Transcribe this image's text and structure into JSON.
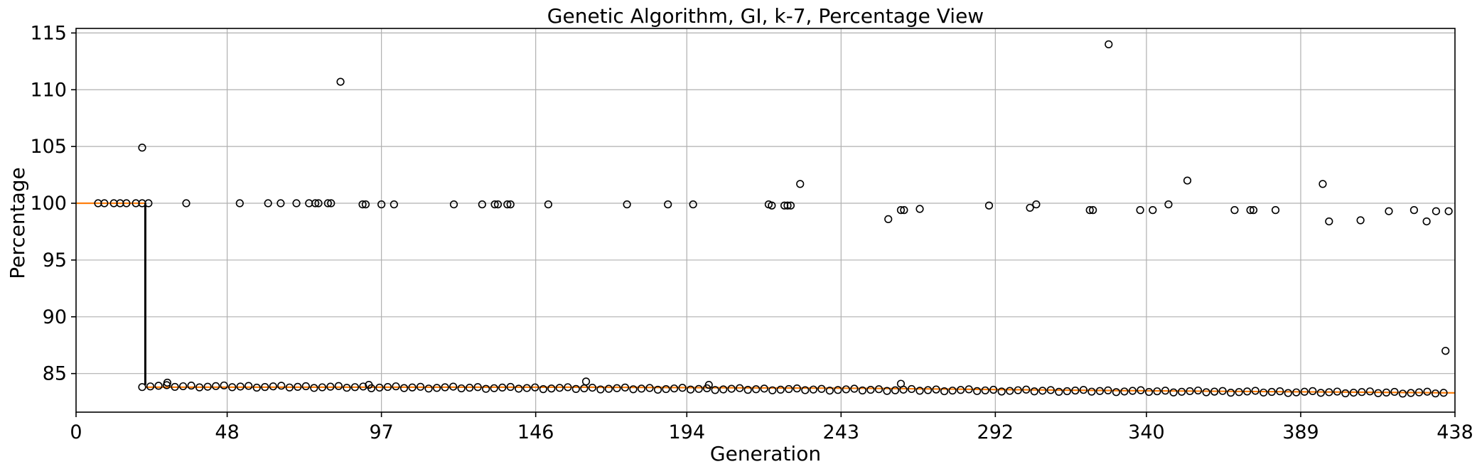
{
  "chart_data": {
    "type": "box",
    "title": "Genetic Algorithm, GI, k-7, Percentage View",
    "xlabel": "Generation",
    "ylabel": "Percentage",
    "xlim": [
      0,
      438
    ],
    "ylim": [
      81.6,
      115.4
    ],
    "x_ticks": [
      0,
      48,
      97,
      146,
      194,
      243,
      292,
      340,
      389,
      438
    ],
    "y_ticks": [
      85,
      90,
      95,
      100,
      105,
      110,
      115
    ],
    "grid": true,
    "median_series": {
      "segments": [
        {
          "x_from": 0,
          "x_to": 22,
          "y_from": 100.0,
          "y_to": 100.0
        },
        {
          "x_from": 22,
          "x_to": 160,
          "y_from": 83.8,
          "y_to": 83.8
        },
        {
          "x_from": 160,
          "x_to": 250,
          "y_from": 83.8,
          "y_to": 83.7
        },
        {
          "x_from": 250,
          "x_to": 330,
          "y_from": 83.7,
          "y_to": 83.5
        },
        {
          "x_from": 330,
          "x_to": 438,
          "y_from": 83.5,
          "y_to": 83.3
        }
      ]
    },
    "whisker": {
      "x": 22,
      "low": 84.0,
      "high": 100.0
    },
    "outliers_upper": [
      {
        "x": 7,
        "y": 100.0
      },
      {
        "x": 9,
        "y": 100.0
      },
      {
        "x": 12,
        "y": 100.0
      },
      {
        "x": 14,
        "y": 100.0
      },
      {
        "x": 16,
        "y": 100.0
      },
      {
        "x": 19,
        "y": 100.0
      },
      {
        "x": 21,
        "y": 100.0
      },
      {
        "x": 23,
        "y": 100.0
      },
      {
        "x": 21,
        "y": 104.9
      },
      {
        "x": 35,
        "y": 100.0
      },
      {
        "x": 52,
        "y": 100.0
      },
      {
        "x": 61,
        "y": 100.0
      },
      {
        "x": 65,
        "y": 100.0
      },
      {
        "x": 70,
        "y": 100.0
      },
      {
        "x": 74,
        "y": 100.0
      },
      {
        "x": 76,
        "y": 100.0
      },
      {
        "x": 77,
        "y": 100.0
      },
      {
        "x": 80,
        "y": 100.0
      },
      {
        "x": 81,
        "y": 100.0
      },
      {
        "x": 84,
        "y": 110.7
      },
      {
        "x": 91,
        "y": 99.9
      },
      {
        "x": 92,
        "y": 99.9
      },
      {
        "x": 97,
        "y": 99.9
      },
      {
        "x": 101,
        "y": 99.9
      },
      {
        "x": 120,
        "y": 99.9
      },
      {
        "x": 129,
        "y": 99.9
      },
      {
        "x": 133,
        "y": 99.9
      },
      {
        "x": 134,
        "y": 99.9
      },
      {
        "x": 137,
        "y": 99.9
      },
      {
        "x": 138,
        "y": 99.9
      },
      {
        "x": 150,
        "y": 99.9
      },
      {
        "x": 175,
        "y": 99.9
      },
      {
        "x": 188,
        "y": 99.9
      },
      {
        "x": 196,
        "y": 99.9
      },
      {
        "x": 220,
        "y": 99.9
      },
      {
        "x": 221,
        "y": 99.8
      },
      {
        "x": 225,
        "y": 99.8
      },
      {
        "x": 226,
        "y": 99.8
      },
      {
        "x": 227,
        "y": 99.8
      },
      {
        "x": 230,
        "y": 101.7
      },
      {
        "x": 258,
        "y": 98.6
      },
      {
        "x": 262,
        "y": 99.4
      },
      {
        "x": 263,
        "y": 99.4
      },
      {
        "x": 268,
        "y": 99.5
      },
      {
        "x": 290,
        "y": 99.8
      },
      {
        "x": 303,
        "y": 99.6
      },
      {
        "x": 305,
        "y": 99.9
      },
      {
        "x": 322,
        "y": 99.4
      },
      {
        "x": 323,
        "y": 99.4
      },
      {
        "x": 328,
        "y": 114.0
      },
      {
        "x": 338,
        "y": 99.4
      },
      {
        "x": 342,
        "y": 99.4
      },
      {
        "x": 347,
        "y": 99.9
      },
      {
        "x": 353,
        "y": 102.0
      },
      {
        "x": 368,
        "y": 99.4
      },
      {
        "x": 373,
        "y": 99.4
      },
      {
        "x": 374,
        "y": 99.4
      },
      {
        "x": 381,
        "y": 99.4
      },
      {
        "x": 396,
        "y": 101.7
      },
      {
        "x": 398,
        "y": 98.4
      },
      {
        "x": 408,
        "y": 98.5
      },
      {
        "x": 417,
        "y": 99.3
      },
      {
        "x": 425,
        "y": 99.4
      },
      {
        "x": 429,
        "y": 98.4
      },
      {
        "x": 432,
        "y": 99.3
      },
      {
        "x": 436,
        "y": 99.3
      },
      {
        "x": 435,
        "y": 87.0
      }
    ],
    "outliers_lower_band": {
      "x_start": 21,
      "x_end": 437,
      "step": 2.6,
      "y_start": 83.9,
      "y_end": 83.3,
      "extra": [
        {
          "x": 29,
          "y": 84.2
        },
        {
          "x": 93,
          "y": 84.0
        },
        {
          "x": 162,
          "y": 84.3
        },
        {
          "x": 201,
          "y": 84.0
        },
        {
          "x": 262,
          "y": 84.1
        }
      ]
    }
  }
}
